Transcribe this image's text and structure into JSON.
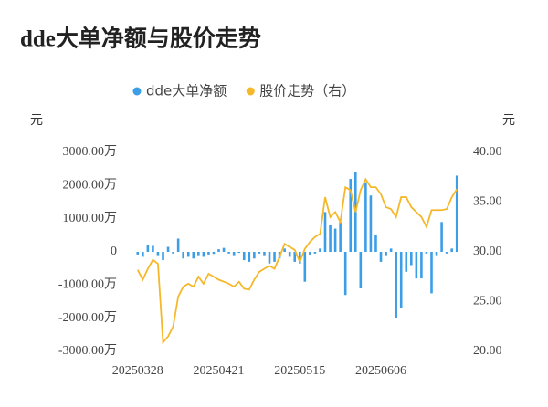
{
  "chart_data": {
    "type": "bar-line",
    "title": "dde大单净额与股价走势",
    "ylabel": "元",
    "y2label": "元",
    "categories": [
      "20250328",
      null,
      null,
      null,
      null,
      null,
      null,
      null,
      null,
      null,
      null,
      null,
      null,
      null,
      null,
      null,
      "20250421",
      null,
      null,
      null,
      null,
      null,
      null,
      null,
      null,
      null,
      null,
      null,
      null,
      null,
      null,
      null,
      "20250515",
      null,
      null,
      null,
      null,
      null,
      null,
      null,
      null,
      null,
      null,
      null,
      null,
      null,
      null,
      null,
      "20250606",
      null,
      null,
      null,
      null,
      null,
      null,
      null,
      null,
      null,
      null,
      null,
      null,
      null,
      null,
      null
    ],
    "series": [
      {
        "name": "dde大单净额",
        "type": "bar",
        "color": "#3d9ee8",
        "values": [
          -80,
          -150,
          200,
          180,
          -100,
          -250,
          150,
          -50,
          400,
          -200,
          -150,
          -200,
          -100,
          -150,
          -80,
          -60,
          80,
          120,
          -50,
          -100,
          -30,
          -250,
          -300,
          -200,
          -50,
          -100,
          -350,
          -300,
          -200,
          100,
          -150,
          -300,
          -350,
          -900,
          -80,
          -50,
          100,
          1200,
          800,
          700,
          900,
          -1300,
          2200,
          2400,
          -1100,
          2100,
          1700,
          500,
          -300,
          -100,
          100,
          -2000,
          -1700,
          -600,
          -400,
          -800,
          -800,
          -50,
          -1250,
          -100,
          900,
          -50,
          100,
          2300
        ]
      },
      {
        "name": "股价走势（右）",
        "type": "line",
        "axis": "y2",
        "color": "#f5b82a",
        "values": [
          28.2,
          27.2,
          28.3,
          29.2,
          28.8,
          20.9,
          21.5,
          22.5,
          25.5,
          26.5,
          26.8,
          26.5,
          27.5,
          26.8,
          27.8,
          27.5,
          27.2,
          27.0,
          26.8,
          26.5,
          27.0,
          26.3,
          26.2,
          27.2,
          28.0,
          28.3,
          28.6,
          28.3,
          29.5,
          30.8,
          30.5,
          30.2,
          29.0,
          30.3,
          31.0,
          31.5,
          31.8,
          35.5,
          33.5,
          34.0,
          33.0,
          36.5,
          36.2,
          34.0,
          36.2,
          37.3,
          36.5,
          36.5,
          35.8,
          34.5,
          34.3,
          33.5,
          35.5,
          35.5,
          34.5,
          34.0,
          33.5,
          32.5,
          34.2,
          34.2,
          34.2,
          34.3,
          35.5,
          36.3
        ]
      }
    ],
    "ylim": [
      -3000,
      3000
    ],
    "yticks": [
      {
        "value": 3000,
        "label": "3000.00万"
      },
      {
        "value": 2000,
        "label": "2000.00万"
      },
      {
        "value": 1000,
        "label": "1000.00万"
      },
      0,
      {
        "value": -1000,
        "label": "-1000.00万"
      },
      {
        "value": -2000,
        "label": "-2000.00万"
      },
      {
        "value": -3000,
        "label": "-3000.00万"
      }
    ],
    "y2lim": [
      20,
      40
    ],
    "y2ticks": [
      {
        "value": 40,
        "label": "40.00"
      },
      {
        "value": 35,
        "label": "35.00"
      },
      {
        "value": 30,
        "label": "30.00"
      },
      {
        "value": 25,
        "label": "25.00"
      },
      {
        "value": 20,
        "label": "20.00"
      }
    ],
    "grid": false
  }
}
